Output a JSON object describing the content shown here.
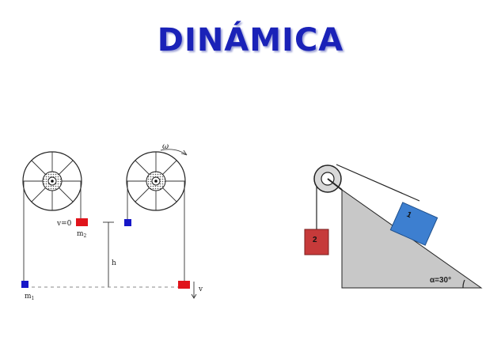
{
  "title": "DINÁMICA",
  "left_diagram": {
    "v0_label": "v=0",
    "m2_label": "m",
    "m2_sub": "2",
    "m1_label": "m",
    "m1_sub": "1",
    "h_label": "h",
    "omega_label": "ω",
    "v_label": "v",
    "colors": {
      "block_red": "#e0141b",
      "block_blue": "#1717c8"
    }
  },
  "right_diagram": {
    "block1_label": "1",
    "block2_label": "2",
    "angle_label": "α=30°",
    "colors": {
      "incline": "#c8c8c8",
      "block1": "#3d7fd0",
      "block2": "#c63a3a"
    }
  }
}
